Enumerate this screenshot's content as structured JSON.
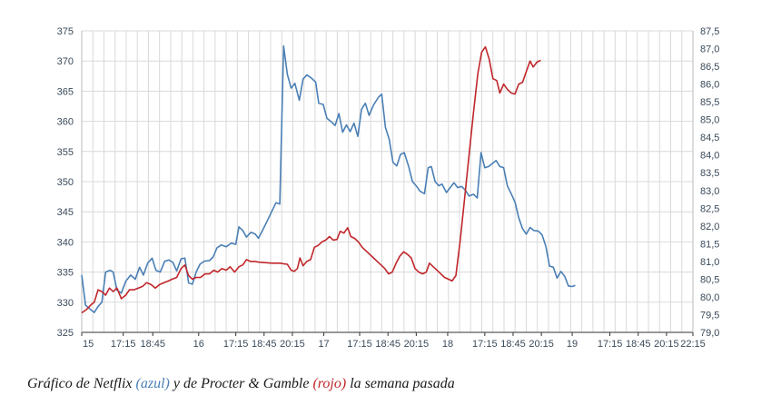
{
  "caption": {
    "p1": "Gráfico de Netflix ",
    "blue": "(azul)",
    "p2": " y de Procter & Gamble ",
    "red": "(rojo)",
    "p3": " la semana pasada"
  },
  "colors": {
    "netflix": "#4a7fb5",
    "pg": "#c0262b",
    "grid": "#d9d9d9",
    "axis": "#333333"
  },
  "chart_data": {
    "type": "line",
    "grid": true,
    "legend": "none",
    "x_ticks": [
      {
        "label": "15",
        "t": 0
      },
      {
        "label": "17:15",
        "t": 6.6
      },
      {
        "label": "18:45",
        "t": 11.3
      },
      {
        "label": "16",
        "t": 18.6
      },
      {
        "label": "17:15",
        "t": 24.5
      },
      {
        "label": "18:45",
        "t": 29.0
      },
      {
        "label": "20:15",
        "t": 33.5
      },
      {
        "label": "17",
        "t": 38.5
      },
      {
        "label": "17:15",
        "t": 44.2
      },
      {
        "label": "18:45",
        "t": 48.7
      },
      {
        "label": "20:15",
        "t": 53.2
      },
      {
        "label": "18",
        "t": 58.2
      },
      {
        "label": "17:15",
        "t": 64.1
      },
      {
        "label": "18:45",
        "t": 68.6
      },
      {
        "label": "20:15",
        "t": 73.1
      },
      {
        "label": "19",
        "t": 78.0
      },
      {
        "label": "17:15",
        "t": 84.0
      },
      {
        "label": "18:45",
        "t": 88.5
      },
      {
        "label": "20:15",
        "t": 93.0
      },
      {
        "label": "22:15",
        "t": 97.2
      }
    ],
    "x_range": [
      0,
      97.2
    ],
    "y_left": {
      "range": [
        325,
        375
      ],
      "ticks": [
        325,
        330,
        335,
        340,
        345,
        350,
        355,
        360,
        365,
        370,
        375
      ]
    },
    "y_right": {
      "range": [
        79.0,
        87.5
      ],
      "ticks": [
        "79,0",
        "79,5",
        "80,0",
        "80,5",
        "81,0",
        "81,5",
        "82,0",
        "82,5",
        "83,0",
        "83,5",
        "84,0",
        "84,5",
        "85,0",
        "85,5",
        "86,0",
        "86,5",
        "87,0",
        "87,5"
      ]
    },
    "series": [
      {
        "axis": "left",
        "color": "#4a7fb5",
        "points": [
          [
            0,
            334.5
          ],
          [
            0.6,
            329.5
          ],
          [
            1.4,
            328.8
          ],
          [
            2.0,
            328.3
          ],
          [
            2.6,
            329.3
          ],
          [
            3.2,
            330
          ],
          [
            3.8,
            335
          ],
          [
            4.5,
            335.3
          ],
          [
            5.0,
            335
          ],
          [
            5.6,
            332
          ],
          [
            6.3,
            331.5
          ],
          [
            7.0,
            333.5
          ],
          [
            7.8,
            334.5
          ],
          [
            8.5,
            333.8
          ],
          [
            9.2,
            335.8
          ],
          [
            9.8,
            334.5
          ],
          [
            10.5,
            336.5
          ],
          [
            11.2,
            337.3
          ],
          [
            11.8,
            335.3
          ],
          [
            12.5,
            335
          ],
          [
            13.2,
            336.8
          ],
          [
            13.9,
            337
          ],
          [
            14.5,
            336.6
          ],
          [
            15.1,
            335.2
          ],
          [
            15.8,
            337.2
          ],
          [
            16.4,
            337.3
          ],
          [
            17.0,
            333.2
          ],
          [
            17.6,
            333
          ],
          [
            18.2,
            335
          ],
          [
            18.8,
            336.3
          ],
          [
            19.5,
            336.8
          ],
          [
            20.3,
            336.9
          ],
          [
            20.9,
            337.5
          ],
          [
            21.5,
            339
          ],
          [
            22.2,
            339.5
          ],
          [
            23.0,
            339.2
          ],
          [
            23.8,
            339.8
          ],
          [
            24.5,
            339.6
          ],
          [
            25.0,
            342.5
          ],
          [
            25.6,
            341.9
          ],
          [
            26.2,
            340.8
          ],
          [
            26.9,
            341.6
          ],
          [
            27.6,
            341.3
          ],
          [
            28.1,
            340.6
          ],
          [
            28.8,
            342
          ],
          [
            29.5,
            343.5
          ],
          [
            30.2,
            345
          ],
          [
            30.9,
            346.5
          ],
          [
            31.5,
            346.3
          ],
          [
            32.1,
            372.5
          ],
          [
            32.7,
            367.8
          ],
          [
            33.3,
            365.5
          ],
          [
            33.9,
            366.3
          ],
          [
            34.6,
            363.5
          ],
          [
            35.2,
            367
          ],
          [
            35.8,
            367.7
          ],
          [
            36.5,
            367.2
          ],
          [
            37.2,
            366.5
          ],
          [
            37.7,
            363
          ],
          [
            38.4,
            362.8
          ],
          [
            39.0,
            360.5
          ],
          [
            39.6,
            360
          ],
          [
            40.3,
            359.3
          ],
          [
            40.9,
            361.3
          ],
          [
            41.5,
            358.2
          ],
          [
            42.1,
            359.4
          ],
          [
            42.7,
            358.3
          ],
          [
            43.3,
            359.7
          ],
          [
            43.9,
            357.5
          ],
          [
            44.5,
            362
          ],
          [
            45.1,
            363
          ],
          [
            45.7,
            361
          ],
          [
            46.4,
            362.7
          ],
          [
            47.2,
            364
          ],
          [
            47.7,
            364.5
          ],
          [
            48.3,
            359
          ],
          [
            48.9,
            357
          ],
          [
            49.5,
            353.2
          ],
          [
            50.1,
            352.6
          ],
          [
            50.7,
            354.5
          ],
          [
            51.3,
            354.8
          ],
          [
            52.0,
            352.5
          ],
          [
            52.6,
            350
          ],
          [
            53.2,
            349.3
          ],
          [
            53.8,
            348.4
          ],
          [
            54.5,
            348
          ],
          [
            55.1,
            352.3
          ],
          [
            55.6,
            352.5
          ],
          [
            56.2,
            350
          ],
          [
            56.8,
            349.3
          ],
          [
            57.3,
            349.6
          ],
          [
            58.0,
            348.2
          ],
          [
            58.6,
            349
          ],
          [
            59.2,
            349.8
          ],
          [
            59.8,
            349
          ],
          [
            60.4,
            349.2
          ],
          [
            61.0,
            348.6
          ],
          [
            61.6,
            347.6
          ],
          [
            62.3,
            347.9
          ],
          [
            62.9,
            347.3
          ],
          [
            63.5,
            354.8
          ],
          [
            64.1,
            352.3
          ],
          [
            64.7,
            352.5
          ],
          [
            65.3,
            353
          ],
          [
            65.9,
            353.5
          ],
          [
            66.5,
            352.5
          ],
          [
            67.1,
            352.3
          ],
          [
            67.7,
            349.3
          ],
          [
            68.3,
            348
          ],
          [
            68.9,
            346.6
          ],
          [
            69.5,
            344
          ],
          [
            70.1,
            342.2
          ],
          [
            70.7,
            341.3
          ],
          [
            71.3,
            342.4
          ],
          [
            71.9,
            341.9
          ],
          [
            72.6,
            341.8
          ],
          [
            73.2,
            341.2
          ],
          [
            73.8,
            339.3
          ],
          [
            74.4,
            336
          ],
          [
            75.0,
            335.8
          ],
          [
            75.6,
            334
          ],
          [
            76.2,
            335.1
          ],
          [
            76.8,
            334.3
          ],
          [
            77.4,
            332.7
          ],
          [
            78.0,
            332.6
          ],
          [
            78.5,
            332.8
          ]
        ]
      },
      {
        "axis": "right",
        "color": "#c0262b",
        "points": [
          [
            0,
            79.55
          ],
          [
            0.8,
            79.65
          ],
          [
            1.6,
            79.8
          ],
          [
            2.0,
            79.85
          ],
          [
            2.6,
            80.2
          ],
          [
            3.2,
            80.15
          ],
          [
            3.8,
            80.05
          ],
          [
            4.4,
            80.25
          ],
          [
            5.0,
            80.15
          ],
          [
            5.6,
            80.25
          ],
          [
            6.3,
            79.95
          ],
          [
            7.0,
            80.05
          ],
          [
            7.6,
            80.2
          ],
          [
            8.3,
            80.2
          ],
          [
            9.0,
            80.25
          ],
          [
            9.7,
            80.3
          ],
          [
            10.3,
            80.4
          ],
          [
            11.0,
            80.35
          ],
          [
            11.7,
            80.25
          ],
          [
            12.4,
            80.35
          ],
          [
            13.1,
            80.4
          ],
          [
            13.8,
            80.45
          ],
          [
            14.4,
            80.5
          ],
          [
            15.1,
            80.55
          ],
          [
            15.8,
            80.8
          ],
          [
            16.4,
            80.9
          ],
          [
            17.0,
            80.6
          ],
          [
            17.6,
            80.5
          ],
          [
            18.2,
            80.55
          ],
          [
            18.9,
            80.55
          ],
          [
            19.6,
            80.65
          ],
          [
            20.3,
            80.65
          ],
          [
            21.0,
            80.75
          ],
          [
            21.6,
            80.7
          ],
          [
            22.3,
            80.8
          ],
          [
            23.0,
            80.75
          ],
          [
            23.6,
            80.85
          ],
          [
            24.3,
            80.7
          ],
          [
            25.0,
            80.85
          ],
          [
            25.6,
            80.9
          ],
          [
            26.2,
            81.05
          ],
          [
            26.8,
            81.0
          ],
          [
            27.5,
            81.0
          ],
          [
            28.2,
            80.98
          ],
          [
            28.9,
            80.97
          ],
          [
            29.6,
            80.96
          ],
          [
            30.3,
            80.95
          ],
          [
            31.0,
            80.95
          ],
          [
            31.6,
            80.95
          ],
          [
            32.2,
            80.93
          ],
          [
            32.7,
            80.92
          ],
          [
            33.3,
            80.75
          ],
          [
            33.8,
            80.72
          ],
          [
            34.3,
            80.8
          ],
          [
            34.7,
            81.1
          ],
          [
            35.2,
            80.88
          ],
          [
            35.8,
            81.0
          ],
          [
            36.4,
            81.05
          ],
          [
            37.0,
            81.4
          ],
          [
            37.6,
            81.45
          ],
          [
            38.2,
            81.55
          ],
          [
            38.8,
            81.6
          ],
          [
            39.4,
            81.7
          ],
          [
            40.0,
            81.6
          ],
          [
            40.6,
            81.62
          ],
          [
            41.1,
            81.85
          ],
          [
            41.7,
            81.8
          ],
          [
            42.3,
            81.95
          ],
          [
            42.8,
            81.7
          ],
          [
            43.4,
            81.65
          ],
          [
            44.0,
            81.55
          ],
          [
            44.6,
            81.4
          ],
          [
            45.2,
            81.3
          ],
          [
            45.8,
            81.2
          ],
          [
            46.4,
            81.1
          ],
          [
            47.0,
            81.0
          ],
          [
            47.6,
            80.9
          ],
          [
            48.2,
            80.8
          ],
          [
            48.8,
            80.65
          ],
          [
            49.4,
            80.7
          ],
          [
            50.0,
            80.95
          ],
          [
            50.6,
            81.15
          ],
          [
            51.2,
            81.27
          ],
          [
            51.8,
            81.2
          ],
          [
            52.4,
            81.1
          ],
          [
            53.0,
            80.8
          ],
          [
            53.6,
            80.7
          ],
          [
            54.2,
            80.65
          ],
          [
            54.8,
            80.7
          ],
          [
            55.3,
            80.95
          ],
          [
            55.9,
            80.85
          ],
          [
            56.5,
            80.75
          ],
          [
            57.1,
            80.65
          ],
          [
            57.7,
            80.55
          ],
          [
            58.3,
            80.5
          ],
          [
            58.9,
            80.45
          ],
          [
            59.5,
            80.6
          ],
          [
            60.2,
            81.6
          ],
          [
            60.9,
            82.8
          ],
          [
            61.6,
            84.0
          ],
          [
            62.3,
            85.2
          ],
          [
            63.0,
            86.3
          ],
          [
            63.6,
            86.9
          ],
          [
            64.2,
            87.05
          ],
          [
            64.8,
            86.7
          ],
          [
            65.4,
            86.15
          ],
          [
            66.0,
            86.1
          ],
          [
            66.5,
            85.75
          ],
          [
            67.1,
            86.0
          ],
          [
            67.7,
            85.85
          ],
          [
            68.3,
            85.75
          ],
          [
            68.9,
            85.72
          ],
          [
            69.5,
            86.0
          ],
          [
            70.1,
            86.05
          ],
          [
            70.7,
            86.35
          ],
          [
            71.3,
            86.65
          ],
          [
            71.8,
            86.48
          ],
          [
            72.4,
            86.62
          ],
          [
            73.0,
            86.67
          ]
        ]
      }
    ]
  }
}
